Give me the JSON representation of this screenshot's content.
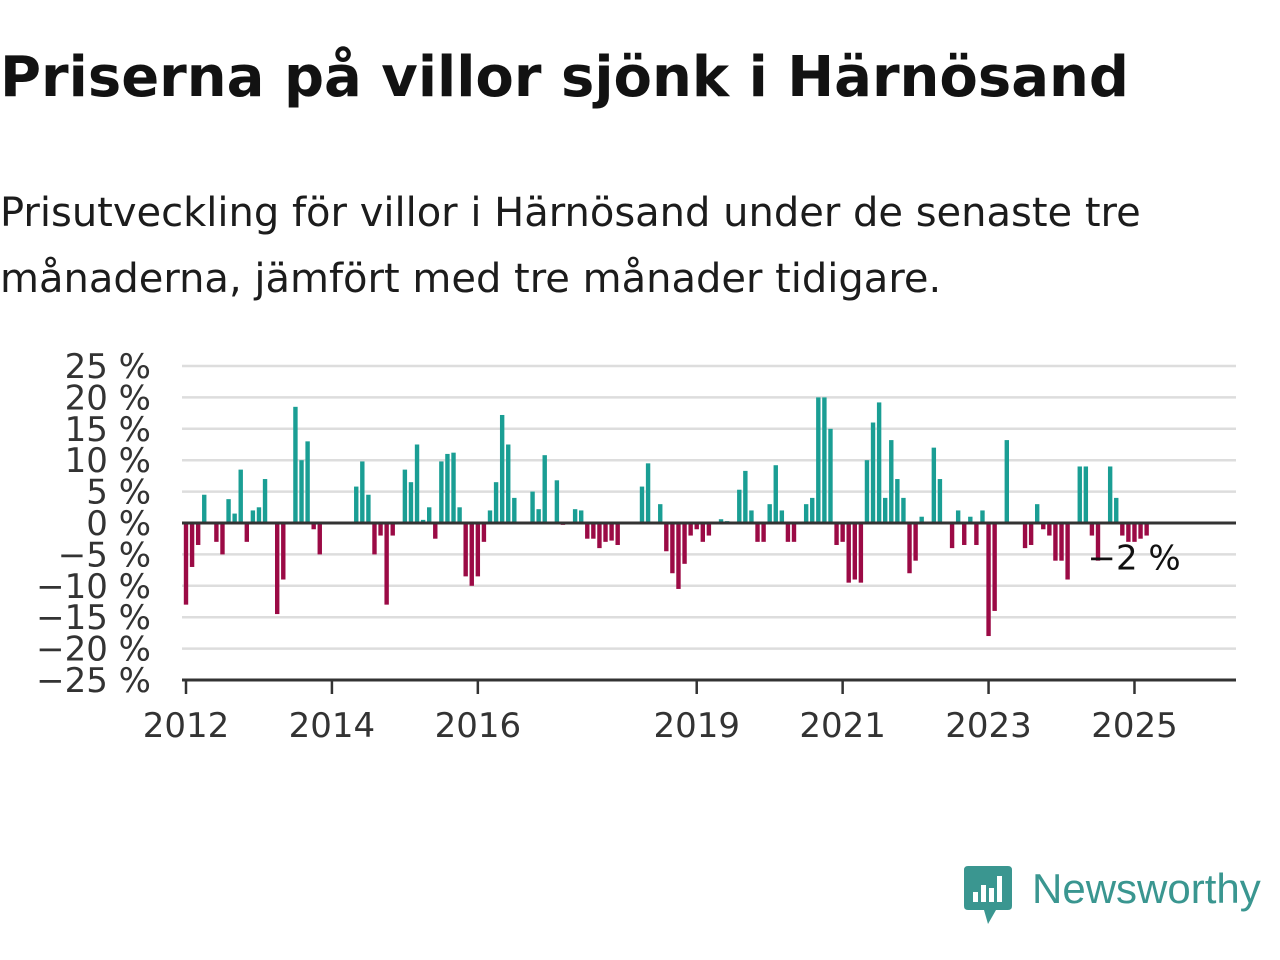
{
  "title": "Priserna på villor sjönk i Härnösand",
  "subtitle": "Prisutveckling för villor i Härnösand under de senaste tre månaderna, jämfört med tre månader tidigare.",
  "brand": {
    "name": "Newsworthy",
    "icon": "newsworthy-logo-icon",
    "color": "#3a9690"
  },
  "chart_data": {
    "type": "bar",
    "title": "",
    "xlabel": "",
    "ylabel": "",
    "ylim": [
      -25,
      25
    ],
    "grid": true,
    "legend": "none",
    "colors": {
      "positive": "#1a9e94",
      "negative": "#9b0a45",
      "zero_line": "#333333",
      "grid": "#dddddd",
      "tick_text": "#333333"
    },
    "y_ticks": [
      {
        "value": 25,
        "label": "25 %"
      },
      {
        "value": 20,
        "label": "20 %"
      },
      {
        "value": 15,
        "label": "15 %"
      },
      {
        "value": 10,
        "label": "10 %"
      },
      {
        "value": 5,
        "label": "5 %"
      },
      {
        "value": 0,
        "label": "0 %"
      },
      {
        "value": -5,
        "label": "−5 %"
      },
      {
        "value": -10,
        "label": "−10 %"
      },
      {
        "value": -15,
        "label": "−15 %"
      },
      {
        "value": -20,
        "label": "−20 %"
      },
      {
        "value": -25,
        "label": "−25 %"
      }
    ],
    "x_ticks": [
      {
        "value": "2012-01",
        "label": "2012"
      },
      {
        "value": "2014-01",
        "label": "2014"
      },
      {
        "value": "2016-01",
        "label": "2016"
      },
      {
        "value": "2019-01",
        "label": "2019"
      },
      {
        "value": "2021-01",
        "label": "2021"
      },
      {
        "value": "2023-01",
        "label": "2023"
      },
      {
        "value": "2025-01",
        "label": "2025"
      }
    ],
    "series": [
      {
        "x_start": "2012-01",
        "x_end": "2025-04",
        "values": [
          -13,
          -7,
          -3.5,
          4.5,
          0,
          -3,
          -5,
          3.8,
          1.5,
          8.5,
          -3,
          2,
          2.5,
          7,
          0,
          -14.5,
          -9,
          0,
          18.5,
          10,
          13,
          -1,
          -5,
          0,
          0,
          0,
          0,
          0,
          5.8,
          9.8,
          4.5,
          -5,
          -2,
          -13,
          -2,
          0,
          8.5,
          6.5,
          12.5,
          0.5,
          2.5,
          -2.5,
          9.8,
          11,
          11.2,
          2.5,
          -8.5,
          -10,
          -8.5,
          -3,
          2,
          6.5,
          17.2,
          12.5,
          4,
          0,
          0,
          5,
          2.2,
          10.8,
          0,
          6.8,
          -0.3,
          0,
          2.2,
          2,
          -2.5,
          -2.5,
          -4,
          -3,
          -2.8,
          -3.5,
          0,
          0,
          0,
          5.8,
          9.5,
          0,
          3,
          -4.5,
          -8,
          -10.5,
          -6.5,
          -2,
          -1,
          -3,
          -2,
          0,
          0.6,
          0.3,
          0,
          5.3,
          8.3,
          2,
          -3,
          -3,
          3,
          9.2,
          2,
          -3,
          -3,
          0,
          3,
          4,
          20,
          20,
          15,
          -3.5,
          -3,
          -9.5,
          -9,
          -9.5,
          10,
          16,
          19.2,
          4,
          13.2,
          7,
          4,
          -8,
          -6,
          1,
          0,
          12,
          7,
          0,
          -4,
          2,
          -3.5,
          1,
          -3.5,
          2,
          -18,
          -14,
          0,
          13.2,
          0,
          0,
          -4,
          -3.5,
          3,
          -1,
          -2,
          -6,
          -6,
          -9,
          0,
          9,
          9,
          -2,
          -6,
          0,
          9,
          4,
          -2,
          -3,
          -3,
          -2.5,
          -2
        ]
      }
    ],
    "annotations": [
      {
        "x": "2025-04",
        "y": -2,
        "text": "−2 %"
      }
    ]
  }
}
